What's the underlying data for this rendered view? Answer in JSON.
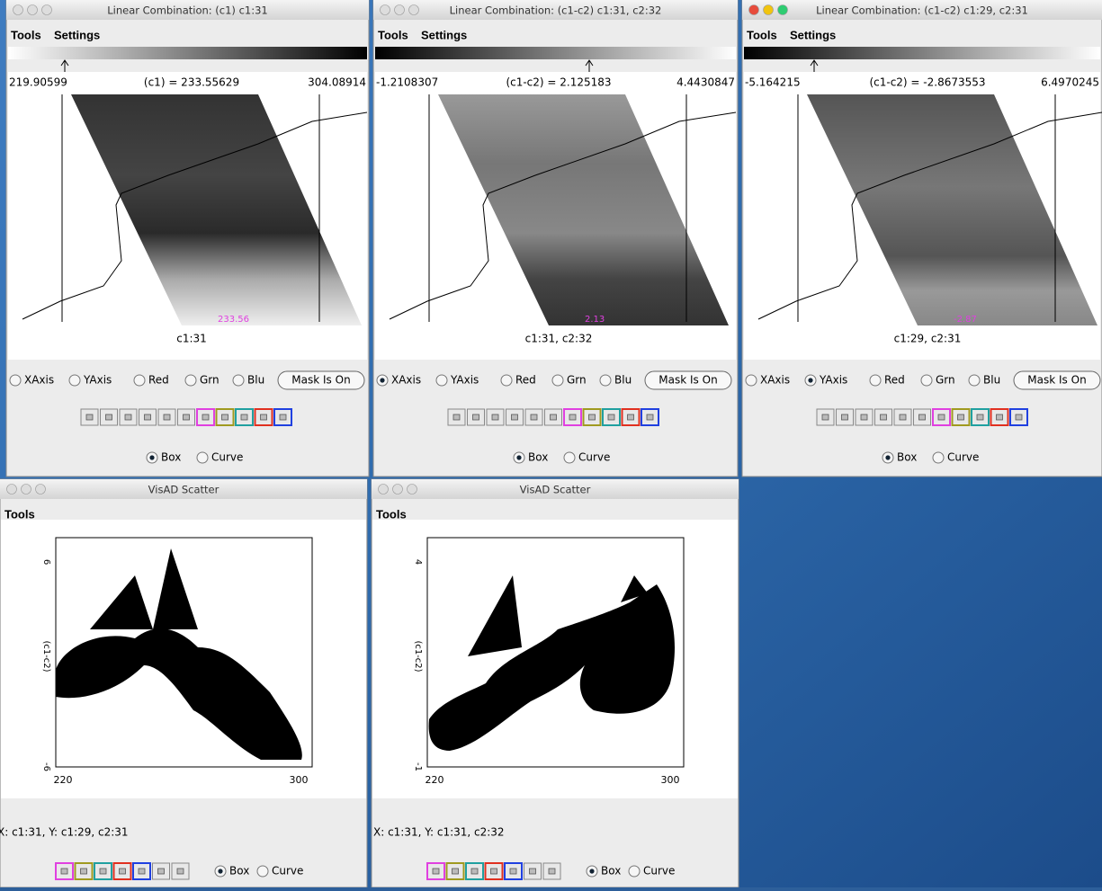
{
  "linear_windows": [
    {
      "title": "Linear Combination: (c1)  c1:31",
      "menu": [
        "Tools",
        "Settings"
      ],
      "min_label": "219.90599",
      "readout": "(c1) = 233.55629",
      "max_label": "304.08914",
      "probe_label": "233.56",
      "caption": "c1:31",
      "radios": [
        {
          "label": "XAxis",
          "checked": false
        },
        {
          "label": "YAxis",
          "checked": false
        },
        {
          "label": "Red",
          "checked": false
        },
        {
          "label": "Grn",
          "checked": false
        },
        {
          "label": "Blu",
          "checked": false
        }
      ],
      "mask_button": "Mask Is On",
      "modes": [
        {
          "label": "Box",
          "checked": true
        },
        {
          "label": "Curve",
          "checked": false
        }
      ]
    },
    {
      "title": "Linear Combination: (c1-c2)  c1:31,  c2:32",
      "menu": [
        "Tools",
        "Settings"
      ],
      "min_label": "-1.2108307",
      "readout": "(c1-c2) = 2.125183",
      "max_label": "4.4430847",
      "probe_label": "2.13",
      "caption": "c1:31,  c2:32",
      "radios": [
        {
          "label": "XAxis",
          "checked": true
        },
        {
          "label": "YAxis",
          "checked": false
        },
        {
          "label": "Red",
          "checked": false
        },
        {
          "label": "Grn",
          "checked": false
        },
        {
          "label": "Blu",
          "checked": false
        }
      ],
      "mask_button": "Mask Is On",
      "modes": [
        {
          "label": "Box",
          "checked": true
        },
        {
          "label": "Curve",
          "checked": false
        }
      ]
    },
    {
      "title": "Linear Combination: (c1-c2)  c1:29,  c2:31",
      "menu": [
        "Tools",
        "Settings"
      ],
      "min_label": "-5.164215",
      "readout": "(c1-c2) = -2.8673553",
      "max_label": "6.4970245",
      "probe_label": "-2.87",
      "caption": "c1:29,  c2:31",
      "radios": [
        {
          "label": "XAxis",
          "checked": false
        },
        {
          "label": "YAxis",
          "checked": true
        },
        {
          "label": "Red",
          "checked": false
        },
        {
          "label": "Grn",
          "checked": false
        },
        {
          "label": "Blu",
          "checked": false
        }
      ],
      "mask_button": "Mask Is On",
      "modes": [
        {
          "label": "Box",
          "checked": true
        },
        {
          "label": "Curve",
          "checked": false
        }
      ]
    }
  ],
  "scatter_windows": [
    {
      "title": "VisAD Scatter",
      "menu": [
        "Tools"
      ],
      "y_label": "(c1-c2)",
      "y_top": "6",
      "y_bottom": "-6",
      "x_left": "220",
      "x_right": "300",
      "status": "X: c1:31,   Y: c1:29,  c2:31",
      "modes": [
        {
          "label": "Box",
          "checked": true
        },
        {
          "label": "Curve",
          "checked": false
        }
      ]
    },
    {
      "title": "VisAD Scatter",
      "menu": [
        "Tools"
      ],
      "y_label": "(c1-c2)",
      "y_top": "4",
      "y_bottom": "-1",
      "x_left": "220",
      "x_right": "300",
      "status": "X: c1:31,   Y: c1:31,  c2:32",
      "modes": [
        {
          "label": "Box",
          "checked": true
        },
        {
          "label": "Curve",
          "checked": false
        }
      ]
    }
  ]
}
